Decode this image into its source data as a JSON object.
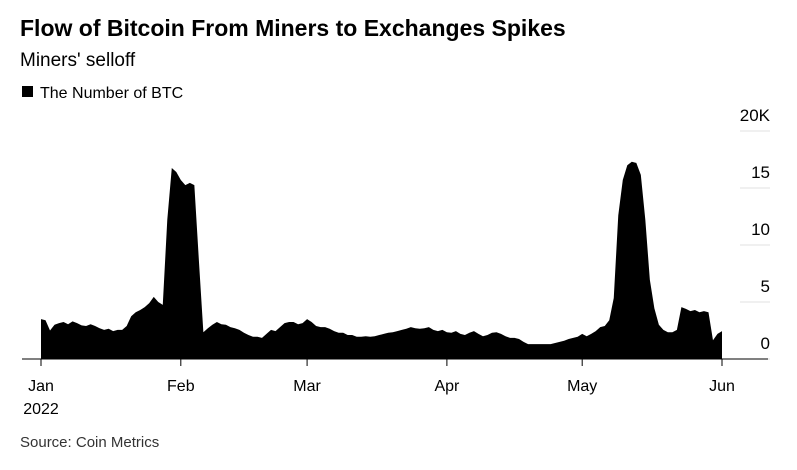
{
  "chart_data": {
    "type": "area",
    "title": "Flow of Bitcoin From Miners to Exchanges Spikes",
    "subtitle": "Miners' selloff",
    "source": "Source: Coin Metrics",
    "year_label": "2022",
    "series": [
      {
        "name": "The Number of BTC",
        "color": "#000000",
        "values": [
          3500,
          3400,
          2500,
          3000,
          3150,
          3250,
          3050,
          3300,
          3150,
          2950,
          2900,
          3050,
          2900,
          2700,
          2550,
          2650,
          2450,
          2550,
          2550,
          2900,
          3750,
          4100,
          4300,
          4550,
          4900,
          5450,
          5000,
          4750,
          12200,
          16750,
          16400,
          15700,
          15250,
          15450,
          15250,
          8700,
          2350,
          2700,
          3000,
          3250,
          3050,
          3000,
          2800,
          2700,
          2550,
          2300,
          2100,
          1950,
          1950,
          1850,
          2200,
          2550,
          2450,
          2800,
          3150,
          3250,
          3250,
          3050,
          3150,
          3500,
          3250,
          2900,
          2800,
          2800,
          2650,
          2450,
          2300,
          2300,
          2100,
          2100,
          1950,
          1950,
          2000,
          1950,
          2000,
          2100,
          2200,
          2300,
          2350,
          2450,
          2550,
          2650,
          2800,
          2700,
          2650,
          2700,
          2800,
          2550,
          2450,
          2550,
          2350,
          2300,
          2450,
          2200,
          2100,
          2300,
          2450,
          2200,
          2000,
          2100,
          2300,
          2350,
          2200,
          2000,
          1850,
          1850,
          1750,
          1500,
          1300,
          1300,
          1300,
          1300,
          1300,
          1300,
          1400,
          1500,
          1600,
          1750,
          1850,
          1950,
          2200,
          2000,
          2200,
          2450,
          2800,
          2900,
          3400,
          5350,
          12600,
          15700,
          17000,
          17300,
          17200,
          16150,
          12200,
          6950,
          4450,
          3000,
          2550,
          2350,
          2350,
          2550,
          4550,
          4400,
          4200,
          4300,
          4100,
          4200,
          4100,
          1650,
          2200,
          2450
        ]
      }
    ],
    "categories": [
      "Jan",
      null,
      null,
      null,
      null,
      null,
      null,
      null,
      null,
      null,
      null,
      null,
      null,
      null,
      null,
      null,
      null,
      null,
      null,
      null,
      null,
      null,
      null,
      null,
      null,
      null,
      null,
      null,
      null,
      null,
      null,
      "Feb",
      null,
      null,
      null,
      null,
      null,
      null,
      null,
      null,
      null,
      null,
      null,
      null,
      null,
      null,
      null,
      null,
      null,
      null,
      null,
      null,
      null,
      null,
      null,
      null,
      null,
      null,
      null,
      "Mar",
      null,
      null,
      null,
      null,
      null,
      null,
      null,
      null,
      null,
      null,
      null,
      null,
      null,
      null,
      null,
      null,
      null,
      null,
      null,
      null,
      null,
      null,
      null,
      null,
      null,
      null,
      null,
      null,
      null,
      null,
      "Apr",
      null,
      null,
      null,
      null,
      null,
      null,
      null,
      null,
      null,
      null,
      null,
      null,
      null,
      null,
      null,
      null,
      null,
      null,
      null,
      null,
      null,
      null,
      null,
      null,
      null,
      null,
      null,
      null,
      null,
      "May",
      null,
      null,
      null,
      null,
      null,
      null,
      null,
      null,
      null,
      null,
      null,
      null,
      null,
      null,
      null,
      null,
      null,
      null,
      null,
      null,
      null,
      null,
      null,
      null,
      null,
      null,
      null,
      null,
      null,
      null,
      "Jun"
    ],
    "ylim": [
      0,
      20000
    ],
    "yticks": [
      0,
      {
        "value": 5000,
        "label": "5"
      },
      {
        "value": 10000,
        "label": "10"
      },
      {
        "value": 15000,
        "label": "15"
      },
      {
        "value": 20000,
        "label": "20K"
      }
    ],
    "legend": "top-left"
  }
}
